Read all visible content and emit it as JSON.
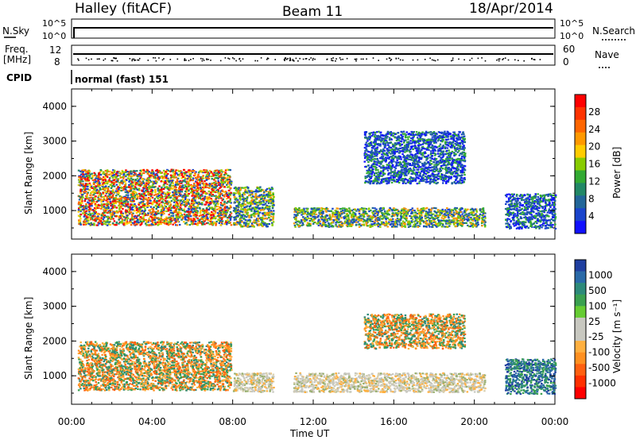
{
  "header": {
    "left_title": "Halley (fitACF)",
    "center_title": "Beam 11",
    "right_title": "18/Apr/2014"
  },
  "strips": {
    "nsky_label": "N.Sky",
    "nsky_ticks": [
      "10^5",
      "10^0"
    ],
    "nsearch_label": "N.Search",
    "freq_label_1": "Freq.",
    "freq_label_2": "[MHz]",
    "freq_ticks": [
      "12",
      "8"
    ],
    "nave_label": "Nave",
    "nave_ticks": [
      "60",
      "0"
    ],
    "cpid_label": "CPID",
    "cpid_value": "normal (fast) 151"
  },
  "panels": {
    "power": {
      "ylabel": "Slant Range [km]",
      "colorbar_label": "Power [dB]",
      "colorbar_ticks": [
        "28",
        "24",
        "20",
        "16",
        "12",
        "8",
        "4"
      ],
      "colorbar_colors": [
        "#ff0000",
        "#ff3300",
        "#ff6600",
        "#ff9900",
        "#ffcc00",
        "#88cc00",
        "#33aa33",
        "#228866",
        "#226699",
        "#1a44cc",
        "#1111ff"
      ]
    },
    "velocity": {
      "ylabel": "Slant Range [km]",
      "colorbar_label": "Velocity [m s⁻¹]",
      "colorbar_ticks": [
        "1000",
        "500",
        "100",
        "25",
        "-25",
        "-100",
        "-500",
        "-1000"
      ],
      "colorbar_colors": [
        "#1f3fa0",
        "#2a6aa8",
        "#2d8a7a",
        "#3aa050",
        "#66cc33",
        "#c8c8c0",
        "#c8c8c0",
        "#ffb040",
        "#ff9020",
        "#ff6010",
        "#ff3000",
        "#ff0000"
      ]
    }
  },
  "xaxis": {
    "label": "Time UT",
    "ticks": [
      "00:00",
      "04:00",
      "08:00",
      "12:00",
      "16:00",
      "20:00",
      "00:00"
    ]
  },
  "chart_data": [
    {
      "type": "heatmap",
      "title": "Power [dB]",
      "xlabel": "Time UT",
      "ylabel": "Slant Range [km]",
      "xlim": [
        0,
        24
      ],
      "ylim": [
        180,
        4500
      ],
      "yticks": [
        1000,
        2000,
        3000,
        4000
      ],
      "xticks": [
        "00:00",
        "04:00",
        "08:00",
        "12:00",
        "16:00",
        "20:00",
        "00:00"
      ],
      "color_scale": [
        4,
        8,
        12,
        16,
        20,
        24,
        28
      ],
      "regions": [
        {
          "t0": 0.3,
          "t1": 7.9,
          "r0": 600,
          "r1": 2200,
          "level": "high"
        },
        {
          "t0": 8.0,
          "t1": 10.0,
          "r0": 550,
          "r1": 1700,
          "level": "medium"
        },
        {
          "t0": 11.0,
          "t1": 20.5,
          "r0": 550,
          "r1": 1100,
          "level": "medium"
        },
        {
          "t0": 14.5,
          "t1": 19.5,
          "r0": 1800,
          "r1": 3300,
          "level": "low"
        },
        {
          "t0": 21.5,
          "t1": 24.0,
          "r0": 500,
          "r1": 1500,
          "level": "low"
        }
      ]
    },
    {
      "type": "heatmap",
      "title": "Velocity [m s⁻¹]",
      "xlabel": "Time UT",
      "ylabel": "Slant Range [km]",
      "xlim": [
        0,
        24
      ],
      "ylim": [
        180,
        4500
      ],
      "yticks": [
        1000,
        2000,
        3000,
        4000
      ],
      "xticks": [
        "00:00",
        "04:00",
        "08:00",
        "12:00",
        "16:00",
        "20:00",
        "00:00"
      ],
      "color_scale": [
        -1000,
        -500,
        -100,
        -25,
        25,
        100,
        500,
        1000
      ],
      "regions": [
        {
          "t0": 0.3,
          "t1": 7.9,
          "r0": 600,
          "r1": 2000,
          "level": "negative"
        },
        {
          "t0": 8.0,
          "t1": 10.0,
          "r0": 550,
          "r1": 1100,
          "level": "near-zero"
        },
        {
          "t0": 11.0,
          "t1": 20.5,
          "r0": 550,
          "r1": 1100,
          "level": "near-zero"
        },
        {
          "t0": 14.5,
          "t1": 19.5,
          "r0": 1800,
          "r1": 2800,
          "level": "negative"
        },
        {
          "t0": 21.5,
          "t1": 24.0,
          "r0": 500,
          "r1": 1500,
          "level": "positive"
        }
      ]
    }
  ]
}
